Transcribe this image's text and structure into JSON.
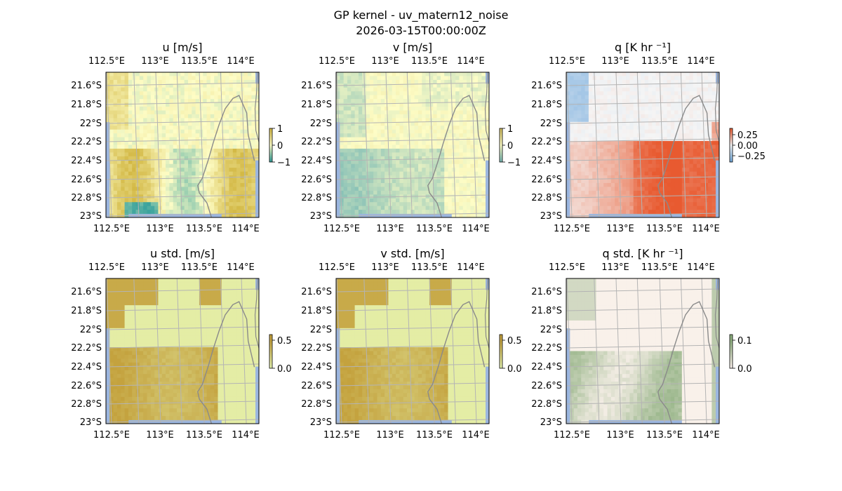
{
  "figure": {
    "title_line1": "GP kernel - uv_matern12_noise",
    "title_line2": "2026-03-15T00:00:00Z"
  },
  "colors": {
    "background": "#ffffff",
    "ocean": "#9bb6e0",
    "coast": "#8a8a8a",
    "grid": "#b4b4b4",
    "u_base": "#fefdc6",
    "u_pos": "#d2b742",
    "u_neg": "#2f9d9a",
    "v_base": "#fefdc6",
    "v_pos": "#cdb85a",
    "v_neg": "#75b7b4",
    "q_base": "#f5f5f5",
    "q_pos": "#e85a30",
    "q_neg": "#6fa8dc",
    "ustd_base": "#e7f5b0",
    "ustd_hi": "#c4a23e",
    "vstd_base": "#e7f5b0",
    "vstd_hi": "#c4a23e",
    "qstd_base": "#fff4f0",
    "qstd_hi": "#8fb080"
  },
  "chart_data": [
    {
      "type": "heatmap",
      "id": "u",
      "title": "u [m/s]",
      "colorbar": {
        "ticks": [
          1,
          0,
          -1
        ],
        "labels": [
          "1",
          "0",
          "−1"
        ],
        "range": [
          -1,
          1
        ]
      },
      "x_ticks": [
        "112.5°E",
        "113°E",
        "113.5°E",
        "114°E"
      ],
      "y_ticks": [
        "21.6°S",
        "21.8°S",
        "22°S",
        "22.2°S",
        "22.4°S",
        "22.6°S",
        "22.8°S",
        "23°S"
      ],
      "lon_range": [
        112.5,
        114.2
      ],
      "lat_range": [
        -23.0,
        -21.48
      ]
    },
    {
      "type": "heatmap",
      "id": "v",
      "title": "v [m/s]",
      "colorbar": {
        "ticks": [
          1,
          0,
          -1
        ],
        "labels": [
          "1",
          "0",
          "−1"
        ],
        "range": [
          -1,
          1
        ]
      },
      "x_ticks": [
        "112.5°E",
        "113°E",
        "113.5°E",
        "114°E"
      ],
      "y_ticks": [
        "21.6°S",
        "21.8°S",
        "22°S",
        "22.2°S",
        "22.4°S",
        "22.6°S",
        "22.8°S",
        "23°S"
      ],
      "lon_range": [
        112.5,
        114.2
      ],
      "lat_range": [
        -23.0,
        -21.48
      ]
    },
    {
      "type": "heatmap",
      "id": "q",
      "title": "q [K hr ⁻¹]",
      "colorbar": {
        "ticks": [
          0.25,
          0.0,
          -0.25
        ],
        "labels": [
          "0.25",
          "0.00",
          "−0.25"
        ],
        "range": [
          -0.4,
          0.4
        ]
      },
      "x_ticks": [
        "112.5°E",
        "113°E",
        "113.5°E",
        "114°E"
      ],
      "y_ticks": [
        "21.6°S",
        "21.8°S",
        "22°S",
        "22.2°S",
        "22.4°S",
        "22.6°S",
        "22.8°S",
        "23°S"
      ],
      "lon_range": [
        112.5,
        114.2
      ],
      "lat_range": [
        -23.0,
        -21.48
      ]
    },
    {
      "type": "heatmap",
      "id": "ustd",
      "title": "u std. [m/s]",
      "colorbar": {
        "ticks": [
          0.5,
          0.0
        ],
        "labels": [
          "0.5",
          "0.0"
        ],
        "range": [
          0.0,
          0.6
        ]
      },
      "x_ticks": [
        "112.5°E",
        "113°E",
        "113.5°E",
        "114°E"
      ],
      "y_ticks": [
        "21.6°S",
        "21.8°S",
        "22°S",
        "22.2°S",
        "22.4°S",
        "22.6°S",
        "22.8°S",
        "23°S"
      ],
      "lon_range": [
        112.5,
        114.2
      ],
      "lat_range": [
        -23.0,
        -21.48
      ]
    },
    {
      "type": "heatmap",
      "id": "vstd",
      "title": "v std. [m/s]",
      "colorbar": {
        "ticks": [
          0.5,
          0.0
        ],
        "labels": [
          "0.5",
          "0.0"
        ],
        "range": [
          0.0,
          0.6
        ]
      },
      "x_ticks": [
        "112.5°E",
        "113°E",
        "113.5°E",
        "114°E"
      ],
      "y_ticks": [
        "21.6°S",
        "21.8°S",
        "22°S",
        "22.2°S",
        "22.4°S",
        "22.6°S",
        "22.8°S",
        "23°S"
      ],
      "lon_range": [
        112.5,
        114.2
      ],
      "lat_range": [
        -23.0,
        -21.48
      ]
    },
    {
      "type": "heatmap",
      "id": "qstd",
      "title": "q std. [K hr ⁻¹]",
      "colorbar": {
        "ticks": [
          0.1,
          0.0
        ],
        "labels": [
          "0.1",
          "0.0"
        ],
        "range": [
          0.0,
          0.12
        ]
      },
      "x_ticks": [
        "112.5°E",
        "113°E",
        "113.5°E",
        "114°E"
      ],
      "y_ticks": [
        "21.6°S",
        "21.8°S",
        "22°S",
        "22.2°S",
        "22.4°S",
        "22.6°S",
        "22.8°S",
        "23°S"
      ],
      "lon_range": [
        112.5,
        114.2
      ],
      "lat_range": [
        -23.0,
        -21.48
      ]
    }
  ]
}
